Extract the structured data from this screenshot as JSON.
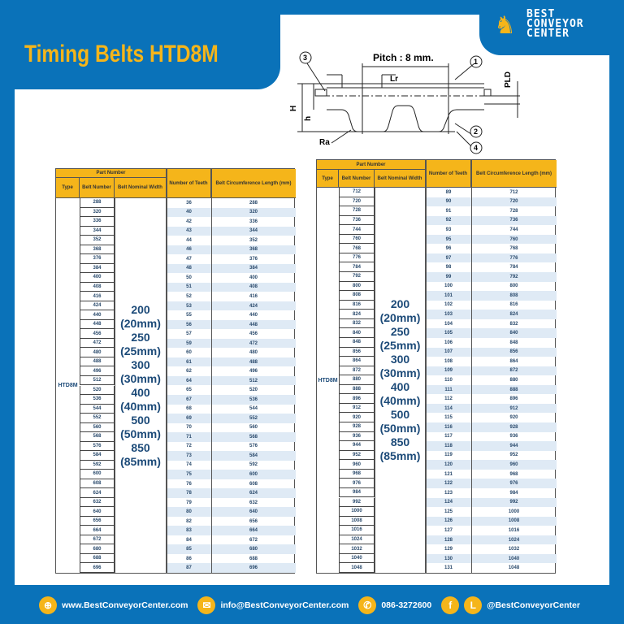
{
  "title": "Timing Belts HTD8M",
  "logo": {
    "lines": [
      "BEST",
      "CONVEYOR",
      "CENTER"
    ]
  },
  "diagram": {
    "pitch": "Pitch : 8 mm.",
    "labels": {
      "lr": "Lr",
      "pld": "PLD",
      "h_upper": "H",
      "h_lower": "h",
      "ra": "Ra",
      "c1": "1",
      "c2": "2",
      "c3": "3",
      "c4": "4"
    }
  },
  "table_headers": {
    "part_number": "Part Number",
    "type": "Type",
    "belt_number": "Belt Number",
    "belt_width": "Belt Nominal Width",
    "teeth": "Number of Teeth",
    "length": "Belt Circumference Length (mm)"
  },
  "type": "HTD8M",
  "widths": [
    "200",
    "(20mm)",
    "250",
    "(25mm)",
    "300",
    "(30mm)",
    "400",
    "(40mm)",
    "500",
    "(50mm)",
    "850",
    "(85mm)"
  ],
  "left_table": {
    "belt_numbers": [
      "288",
      "320",
      "336",
      "344",
      "352",
      "368",
      "376",
      "384",
      "400",
      "408",
      "416",
      "424",
      "440",
      "448",
      "456",
      "472",
      "480",
      "488",
      "496",
      "512",
      "520",
      "536",
      "544",
      "552",
      "560",
      "568",
      "576",
      "584",
      "592",
      "600",
      "608",
      "624",
      "632",
      "640",
      "656",
      "664",
      "672",
      "680",
      "688",
      "696"
    ],
    "teeth": [
      "36",
      "40",
      "42",
      "43",
      "44",
      "46",
      "47",
      "48",
      "50",
      "51",
      "52",
      "53",
      "55",
      "56",
      "57",
      "59",
      "60",
      "61",
      "62",
      "64",
      "65",
      "67",
      "68",
      "69",
      "70",
      "71",
      "72",
      "73",
      "74",
      "75",
      "76",
      "78",
      "79",
      "80",
      "82",
      "83",
      "84",
      "85",
      "86",
      "87"
    ],
    "lengths": [
      "288",
      "320",
      "336",
      "344",
      "352",
      "368",
      "376",
      "384",
      "400",
      "408",
      "416",
      "424",
      "440",
      "448",
      "456",
      "472",
      "480",
      "488",
      "496",
      "512",
      "520",
      "536",
      "544",
      "552",
      "560",
      "568",
      "576",
      "584",
      "592",
      "600",
      "608",
      "624",
      "632",
      "640",
      "656",
      "664",
      "672",
      "680",
      "688",
      "696"
    ]
  },
  "right_table": {
    "belt_numbers": [
      "712",
      "720",
      "728",
      "736",
      "744",
      "760",
      "768",
      "776",
      "784",
      "792",
      "800",
      "808",
      "816",
      "824",
      "832",
      "840",
      "848",
      "856",
      "864",
      "872",
      "880",
      "888",
      "896",
      "912",
      "920",
      "928",
      "936",
      "944",
      "952",
      "960",
      "968",
      "976",
      "984",
      "992",
      "1000",
      "1008",
      "1016",
      "1024",
      "1032",
      "1040",
      "1048"
    ],
    "teeth": [
      "89",
      "90",
      "91",
      "92",
      "93",
      "95",
      "96",
      "97",
      "98",
      "99",
      "100",
      "101",
      "102",
      "103",
      "104",
      "105",
      "106",
      "107",
      "108",
      "109",
      "110",
      "111",
      "112",
      "114",
      "115",
      "116",
      "117",
      "118",
      "119",
      "120",
      "121",
      "122",
      "123",
      "124",
      "125",
      "126",
      "127",
      "128",
      "129",
      "130",
      "131"
    ],
    "lengths": [
      "712",
      "720",
      "728",
      "736",
      "744",
      "760",
      "768",
      "776",
      "784",
      "792",
      "800",
      "808",
      "816",
      "824",
      "832",
      "840",
      "848",
      "856",
      "864",
      "872",
      "880",
      "888",
      "896",
      "912",
      "920",
      "928",
      "936",
      "944",
      "952",
      "960",
      "968",
      "976",
      "984",
      "992",
      "1000",
      "1008",
      "1016",
      "1024",
      "1032",
      "1040",
      "1048"
    ]
  },
  "footer": {
    "website": "www.BestConveyorCenter.com",
    "email": "info@BestConveyorCenter.com",
    "phone": "086-3272600",
    "social": "@BestConveyorCenter",
    "icons": [
      "globe-icon",
      "mail-icon",
      "phone-icon",
      "facebook-icon",
      "line-icon"
    ],
    "icon_glyphs": [
      "⊕",
      "✉",
      "✆",
      "f",
      "L"
    ]
  },
  "colors": {
    "brand_blue": "#0a72b9",
    "accent_yellow": "#f5b51a"
  }
}
